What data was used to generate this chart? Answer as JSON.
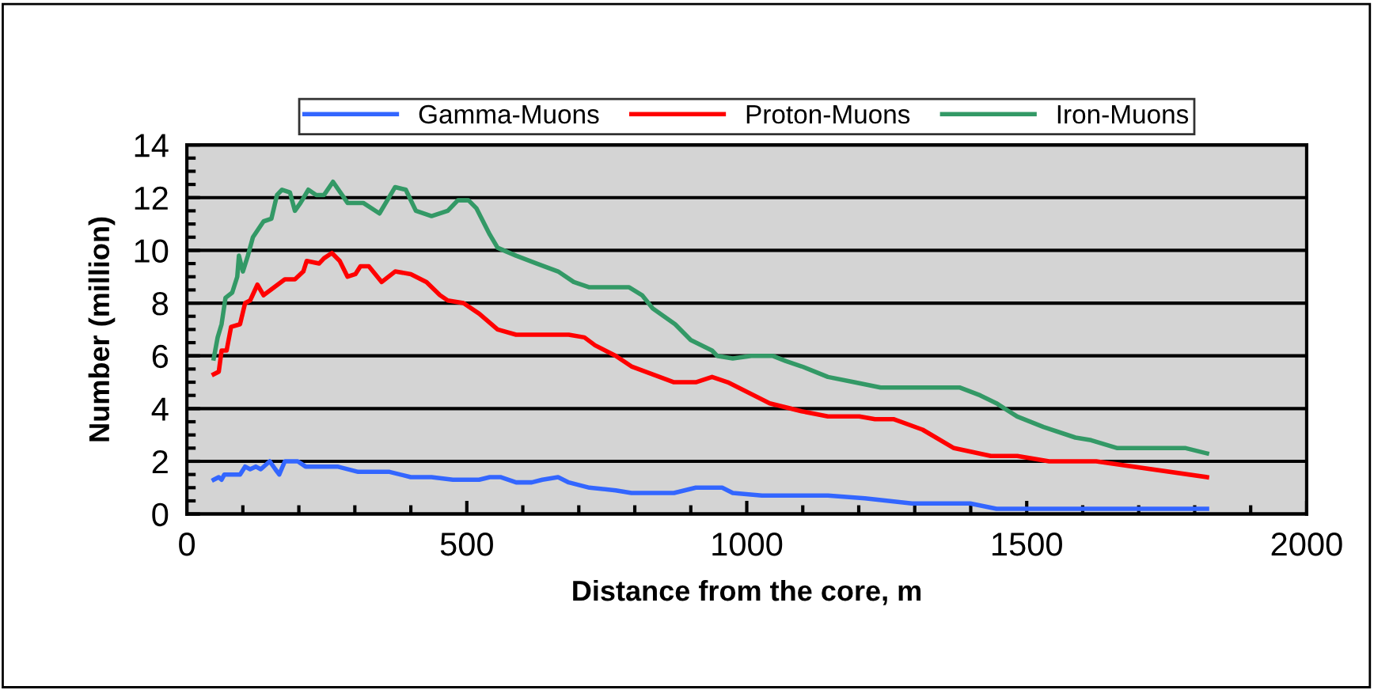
{
  "chart_data": {
    "type": "line",
    "xlabel": "Distance from the core, m",
    "ylabel": "Number (million)",
    "xlim": [
      0,
      2000
    ],
    "xticks": [
      0,
      500,
      1000,
      1500,
      2000
    ],
    "ylim": [
      0,
      14
    ],
    "yticks": [
      0,
      2,
      4,
      6,
      8,
      10,
      12,
      14
    ],
    "grid": "y",
    "legend": "top",
    "marker": "none",
    "line_style": "solid",
    "series": [
      {
        "name": "Gamma-Muons",
        "color": "#3366ff",
        "x": [
          48,
          57,
          62,
          67,
          95,
          104,
          113,
          123,
          132,
          148,
          158,
          165,
          175,
          198,
          212,
          269,
          306,
          362,
          400,
          437,
          475,
          522,
          541,
          560,
          588,
          616,
          635,
          663,
          682,
          719,
          766,
          794,
          870,
          909,
          956,
          975,
          1027,
          1145,
          1211,
          1295,
          1399,
          1446,
          1822
        ],
        "values": [
          1.3,
          1.4,
          1.3,
          1.5,
          1.5,
          1.8,
          1.7,
          1.8,
          1.7,
          2.0,
          1.7,
          1.5,
          2.0,
          2.0,
          1.8,
          1.8,
          1.6,
          1.6,
          1.4,
          1.4,
          1.3,
          1.3,
          1.4,
          1.4,
          1.2,
          1.2,
          1.3,
          1.4,
          1.2,
          1.0,
          0.9,
          0.8,
          0.8,
          1.0,
          1.0,
          0.8,
          0.7,
          0.7,
          0.6,
          0.4,
          0.4,
          0.2,
          0.2
        ]
      },
      {
        "name": "Proton-Muons",
        "color": "#ff0000",
        "x": [
          48,
          57,
          62,
          71,
          79,
          95,
          104,
          113,
          126,
          137,
          156,
          175,
          193,
          208,
          214,
          236,
          245,
          259,
          273,
          287,
          301,
          310,
          325,
          348,
          372,
          400,
          428,
          452,
          466,
          494,
          522,
          555,
          588,
          682,
          710,
          729,
          766,
          794,
          832,
          870,
          888,
          909,
          938,
          966,
          1041,
          1098,
          1145,
          1201,
          1229,
          1262,
          1314,
          1370,
          1436,
          1483,
          1540,
          1624,
          1822
        ],
        "values": [
          5.3,
          5.4,
          6.2,
          6.2,
          7.1,
          7.2,
          8.0,
          8.1,
          8.7,
          8.3,
          8.6,
          8.9,
          8.9,
          9.2,
          9.6,
          9.5,
          9.7,
          9.9,
          9.6,
          9.0,
          9.1,
          9.4,
          9.4,
          8.8,
          9.2,
          9.1,
          8.8,
          8.3,
          8.1,
          8.0,
          7.6,
          7.0,
          6.8,
          6.8,
          6.7,
          6.4,
          6.0,
          5.6,
          5.3,
          5.0,
          5.0,
          5.0,
          5.2,
          5.0,
          4.2,
          3.9,
          3.7,
          3.7,
          3.6,
          3.6,
          3.2,
          2.5,
          2.2,
          2.2,
          2.0,
          2.0,
          1.4
        ]
      },
      {
        "name": "Iron-Muons",
        "color": "#339966",
        "x": [
          48,
          55,
          62,
          69,
          81,
          90,
          93,
          100,
          109,
          118,
          137,
          151,
          161,
          170,
          184,
          193,
          203,
          217,
          231,
          245,
          261,
          287,
          315,
          344,
          372,
          391,
          409,
          437,
          466,
          484,
          503,
          517,
          541,
          555,
          588,
          625,
          663,
          691,
          719,
          790,
          813,
          832,
          872,
          900,
          938,
          947,
          975,
          1008,
          1046,
          1070,
          1098,
          1145,
          1192,
          1239,
          1380,
          1417,
          1446,
          1483,
          1530,
          1587,
          1615,
          1662,
          1700,
          1784,
          1822
        ],
        "values": [
          5.9,
          6.7,
          7.2,
          8.2,
          8.4,
          9.0,
          9.8,
          9.2,
          9.8,
          10.5,
          11.1,
          11.2,
          12.1,
          12.3,
          12.2,
          11.5,
          11.8,
          12.3,
          12.1,
          12.1,
          12.6,
          11.8,
          11.8,
          11.4,
          12.4,
          12.3,
          11.5,
          11.3,
          11.5,
          11.9,
          11.9,
          11.6,
          10.6,
          10.1,
          9.8,
          9.5,
          9.2,
          8.8,
          8.6,
          8.6,
          8.3,
          7.8,
          7.2,
          6.6,
          6.2,
          6.0,
          5.9,
          6.0,
          6.0,
          5.8,
          5.6,
          5.2,
          5.0,
          4.8,
          4.8,
          4.5,
          4.2,
          3.7,
          3.3,
          2.9,
          2.8,
          2.5,
          2.5,
          2.5,
          2.3
        ]
      }
    ]
  }
}
